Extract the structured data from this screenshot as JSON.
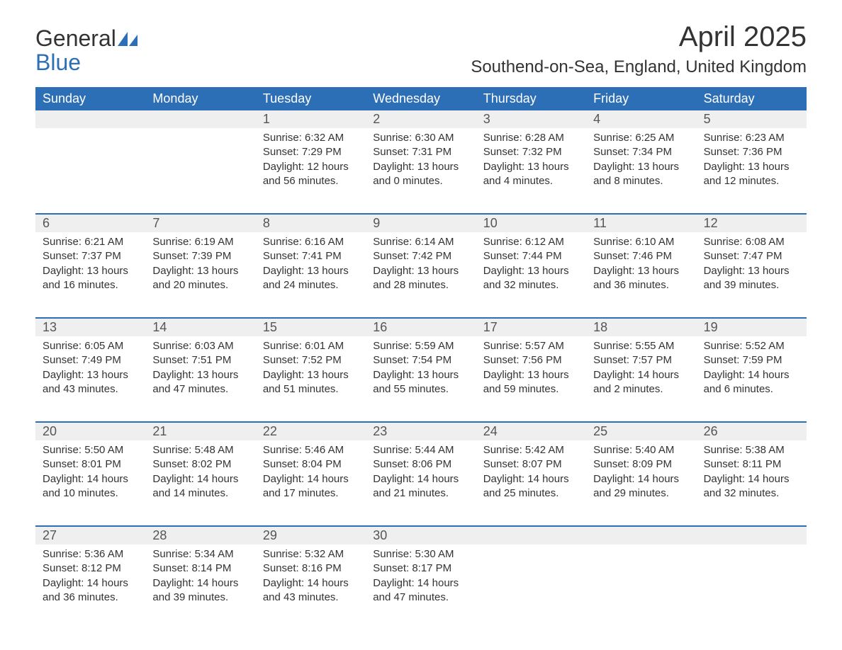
{
  "brand": {
    "word1": "General",
    "word2": "Blue",
    "color_text": "#333333",
    "color_blue": "#2d6fb6"
  },
  "title": "April 2025",
  "location": "Southend-on-Sea, England, United Kingdom",
  "colors": {
    "header_bg": "#2d6fb6",
    "header_text": "#ffffff",
    "strip_bg": "#efefef",
    "page_bg": "#ffffff",
    "body_text": "#333333",
    "number_text": "#555555"
  },
  "weekdays": [
    "Sunday",
    "Monday",
    "Tuesday",
    "Wednesday",
    "Thursday",
    "Friday",
    "Saturday"
  ],
  "weeks": [
    {
      "numbers": [
        "",
        "",
        "1",
        "2",
        "3",
        "4",
        "5"
      ],
      "cells": [
        {
          "sunrise": "",
          "sunset": "",
          "daylight": ""
        },
        {
          "sunrise": "",
          "sunset": "",
          "daylight": ""
        },
        {
          "sunrise": "Sunrise: 6:32 AM",
          "sunset": "Sunset: 7:29 PM",
          "daylight": "Daylight: 12 hours and 56 minutes."
        },
        {
          "sunrise": "Sunrise: 6:30 AM",
          "sunset": "Sunset: 7:31 PM",
          "daylight": "Daylight: 13 hours and 0 minutes."
        },
        {
          "sunrise": "Sunrise: 6:28 AM",
          "sunset": "Sunset: 7:32 PM",
          "daylight": "Daylight: 13 hours and 4 minutes."
        },
        {
          "sunrise": "Sunrise: 6:25 AM",
          "sunset": "Sunset: 7:34 PM",
          "daylight": "Daylight: 13 hours and 8 minutes."
        },
        {
          "sunrise": "Sunrise: 6:23 AM",
          "sunset": "Sunset: 7:36 PM",
          "daylight": "Daylight: 13 hours and 12 minutes."
        }
      ]
    },
    {
      "numbers": [
        "6",
        "7",
        "8",
        "9",
        "10",
        "11",
        "12"
      ],
      "cells": [
        {
          "sunrise": "Sunrise: 6:21 AM",
          "sunset": "Sunset: 7:37 PM",
          "daylight": "Daylight: 13 hours and 16 minutes."
        },
        {
          "sunrise": "Sunrise: 6:19 AM",
          "sunset": "Sunset: 7:39 PM",
          "daylight": "Daylight: 13 hours and 20 minutes."
        },
        {
          "sunrise": "Sunrise: 6:16 AM",
          "sunset": "Sunset: 7:41 PM",
          "daylight": "Daylight: 13 hours and 24 minutes."
        },
        {
          "sunrise": "Sunrise: 6:14 AM",
          "sunset": "Sunset: 7:42 PM",
          "daylight": "Daylight: 13 hours and 28 minutes."
        },
        {
          "sunrise": "Sunrise: 6:12 AM",
          "sunset": "Sunset: 7:44 PM",
          "daylight": "Daylight: 13 hours and 32 minutes."
        },
        {
          "sunrise": "Sunrise: 6:10 AM",
          "sunset": "Sunset: 7:46 PM",
          "daylight": "Daylight: 13 hours and 36 minutes."
        },
        {
          "sunrise": "Sunrise: 6:08 AM",
          "sunset": "Sunset: 7:47 PM",
          "daylight": "Daylight: 13 hours and 39 minutes."
        }
      ]
    },
    {
      "numbers": [
        "13",
        "14",
        "15",
        "16",
        "17",
        "18",
        "19"
      ],
      "cells": [
        {
          "sunrise": "Sunrise: 6:05 AM",
          "sunset": "Sunset: 7:49 PM",
          "daylight": "Daylight: 13 hours and 43 minutes."
        },
        {
          "sunrise": "Sunrise: 6:03 AM",
          "sunset": "Sunset: 7:51 PM",
          "daylight": "Daylight: 13 hours and 47 minutes."
        },
        {
          "sunrise": "Sunrise: 6:01 AM",
          "sunset": "Sunset: 7:52 PM",
          "daylight": "Daylight: 13 hours and 51 minutes."
        },
        {
          "sunrise": "Sunrise: 5:59 AM",
          "sunset": "Sunset: 7:54 PM",
          "daylight": "Daylight: 13 hours and 55 minutes."
        },
        {
          "sunrise": "Sunrise: 5:57 AM",
          "sunset": "Sunset: 7:56 PM",
          "daylight": "Daylight: 13 hours and 59 minutes."
        },
        {
          "sunrise": "Sunrise: 5:55 AM",
          "sunset": "Sunset: 7:57 PM",
          "daylight": "Daylight: 14 hours and 2 minutes."
        },
        {
          "sunrise": "Sunrise: 5:52 AM",
          "sunset": "Sunset: 7:59 PM",
          "daylight": "Daylight: 14 hours and 6 minutes."
        }
      ]
    },
    {
      "numbers": [
        "20",
        "21",
        "22",
        "23",
        "24",
        "25",
        "26"
      ],
      "cells": [
        {
          "sunrise": "Sunrise: 5:50 AM",
          "sunset": "Sunset: 8:01 PM",
          "daylight": "Daylight: 14 hours and 10 minutes."
        },
        {
          "sunrise": "Sunrise: 5:48 AM",
          "sunset": "Sunset: 8:02 PM",
          "daylight": "Daylight: 14 hours and 14 minutes."
        },
        {
          "sunrise": "Sunrise: 5:46 AM",
          "sunset": "Sunset: 8:04 PM",
          "daylight": "Daylight: 14 hours and 17 minutes."
        },
        {
          "sunrise": "Sunrise: 5:44 AM",
          "sunset": "Sunset: 8:06 PM",
          "daylight": "Daylight: 14 hours and 21 minutes."
        },
        {
          "sunrise": "Sunrise: 5:42 AM",
          "sunset": "Sunset: 8:07 PM",
          "daylight": "Daylight: 14 hours and 25 minutes."
        },
        {
          "sunrise": "Sunrise: 5:40 AM",
          "sunset": "Sunset: 8:09 PM",
          "daylight": "Daylight: 14 hours and 29 minutes."
        },
        {
          "sunrise": "Sunrise: 5:38 AM",
          "sunset": "Sunset: 8:11 PM",
          "daylight": "Daylight: 14 hours and 32 minutes."
        }
      ]
    },
    {
      "numbers": [
        "27",
        "28",
        "29",
        "30",
        "",
        "",
        ""
      ],
      "cells": [
        {
          "sunrise": "Sunrise: 5:36 AM",
          "sunset": "Sunset: 8:12 PM",
          "daylight": "Daylight: 14 hours and 36 minutes."
        },
        {
          "sunrise": "Sunrise: 5:34 AM",
          "sunset": "Sunset: 8:14 PM",
          "daylight": "Daylight: 14 hours and 39 minutes."
        },
        {
          "sunrise": "Sunrise: 5:32 AM",
          "sunset": "Sunset: 8:16 PM",
          "daylight": "Daylight: 14 hours and 43 minutes."
        },
        {
          "sunrise": "Sunrise: 5:30 AM",
          "sunset": "Sunset: 8:17 PM",
          "daylight": "Daylight: 14 hours and 47 minutes."
        },
        {
          "sunrise": "",
          "sunset": "",
          "daylight": ""
        },
        {
          "sunrise": "",
          "sunset": "",
          "daylight": ""
        },
        {
          "sunrise": "",
          "sunset": "",
          "daylight": ""
        }
      ]
    }
  ]
}
